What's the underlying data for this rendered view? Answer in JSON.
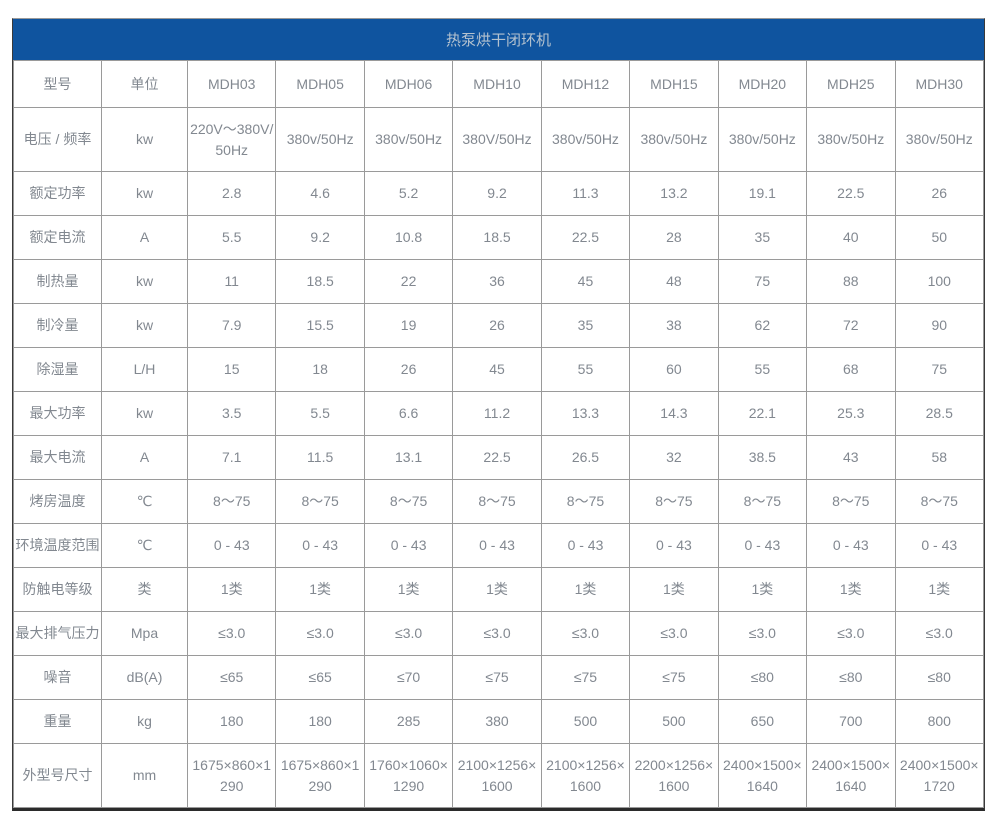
{
  "title": "热泵烘干闭环机",
  "colors": {
    "title_bar_bg": "#0f549f",
    "title_text": "#b4c2cf",
    "cell_text": "#828890",
    "grid_line": "#9a9a9a",
    "outer_border": "#2b2b2b"
  },
  "table": {
    "header": {
      "model_label": "型号",
      "unit_label": "单位",
      "models": [
        "MDH03",
        "MDH05",
        "MDH06",
        "MDH10",
        "MDH12",
        "MDH15",
        "MDH20",
        "MDH25",
        "MDH30"
      ]
    },
    "rows": [
      {
        "label": "电压 / 频率",
        "unit": "kw",
        "values": [
          "220V～380V/50Hz",
          "380v/50Hz",
          "380v/50Hz",
          "380V/50Hz",
          "380v/50Hz",
          "380v/50Hz",
          "380v/50Hz",
          "380v/50Hz",
          "380v/50Hz"
        ]
      },
      {
        "label": "额定功率",
        "unit": "kw",
        "values": [
          "2.8",
          "4.6",
          "5.2",
          "9.2",
          "11.3",
          "13.2",
          "19.1",
          "22.5",
          "26"
        ]
      },
      {
        "label": "额定电流",
        "unit": "A",
        "values": [
          "5.5",
          "9.2",
          "10.8",
          "18.5",
          "22.5",
          "28",
          "35",
          "40",
          "50"
        ]
      },
      {
        "label": "制热量",
        "unit": "kw",
        "values": [
          "11",
          "18.5",
          "22",
          "36",
          "45",
          "48",
          "75",
          "88",
          "100"
        ]
      },
      {
        "label": "制冷量",
        "unit": "kw",
        "values": [
          "7.9",
          "15.5",
          "19",
          "26",
          "35",
          "38",
          "62",
          "72",
          "90"
        ]
      },
      {
        "label": "除湿量",
        "unit": "L/H",
        "values": [
          "15",
          "18",
          "26",
          "45",
          "55",
          "60",
          "55",
          "68",
          "75"
        ]
      },
      {
        "label": "最大功率",
        "unit": "kw",
        "values": [
          "3.5",
          "5.5",
          "6.6",
          "11.2",
          "13.3",
          "14.3",
          "22.1",
          "25.3",
          "28.5"
        ]
      },
      {
        "label": "最大电流",
        "unit": "A",
        "values": [
          "7.1",
          "11.5",
          "13.1",
          "22.5",
          "26.5",
          "32",
          "38.5",
          "43",
          "58"
        ]
      },
      {
        "label": "烤房温度",
        "unit": "℃",
        "values": [
          "8～75",
          "8～75",
          "8～75",
          "8～75",
          "8～75",
          "8～75",
          "8～75",
          "8～75",
          "8～75"
        ]
      },
      {
        "label": "环境温度范围",
        "unit": "℃",
        "values": [
          "0 - 43",
          "0 - 43",
          "0 - 43",
          "0 - 43",
          "0 - 43",
          "0 - 43",
          "0 - 43",
          "0 - 43",
          "0 - 43"
        ]
      },
      {
        "label": "防触电等级",
        "unit": "类",
        "values": [
          "1类",
          "1类",
          "1类",
          "1类",
          "1类",
          "1类",
          "1类",
          "1类",
          "1类"
        ]
      },
      {
        "label": "最大排气压力",
        "unit": "Mpa",
        "values": [
          "≤3.0",
          "≤3.0",
          "≤3.0",
          "≤3.0",
          "≤3.0",
          "≤3.0",
          "≤3.0",
          "≤3.0",
          "≤3.0"
        ]
      },
      {
        "label": "噪音",
        "unit": "dB(A)",
        "values": [
          "≤65",
          "≤65",
          "≤70",
          "≤75",
          "≤75",
          "≤75",
          "≤80",
          "≤80",
          "≤80"
        ]
      },
      {
        "label": "重量",
        "unit": "kg",
        "values": [
          "180",
          "180",
          "285",
          "380",
          "500",
          "500",
          "650",
          "700",
          "800"
        ]
      },
      {
        "label": "外型号尺寸",
        "unit": "mm",
        "values": [
          "1675×860×1290",
          "1675×860×1290",
          "1760×1060×1290",
          "2100×1256×1600",
          "2100×1256×1600",
          "2200×1256×1600",
          "2400×1500×1640",
          "2400×1500×1640",
          "2400×1500×1720"
        ]
      }
    ]
  }
}
